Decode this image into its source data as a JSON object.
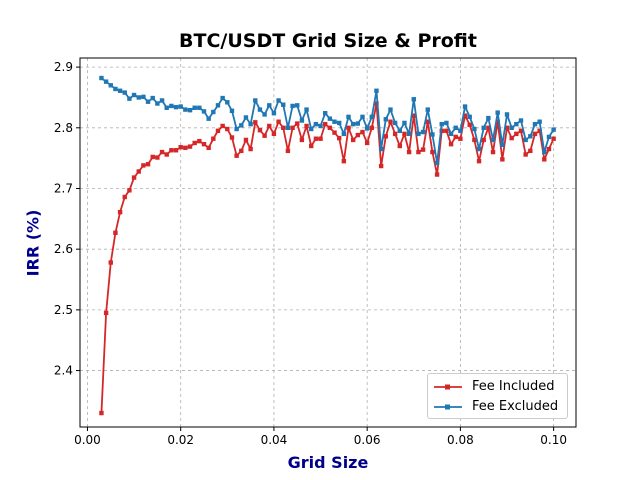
{
  "chart_data": {
    "type": "line",
    "title": "BTC/USDT Grid Size & Profit",
    "xlabel": "Grid Size",
    "ylabel": "IRR (%)",
    "xlim": [
      -0.0016,
      0.1048
    ],
    "ylim": [
      2.307,
      2.915
    ],
    "xticks": [
      0.0,
      0.02,
      0.04,
      0.06,
      0.08,
      0.1
    ],
    "xtick_labels": [
      "0.00",
      "0.02",
      "0.04",
      "0.06",
      "0.08",
      "0.10"
    ],
    "yticks": [
      2.4,
      2.5,
      2.6,
      2.7,
      2.8,
      2.9
    ],
    "ytick_labels": [
      "2.4",
      "2.5",
      "2.6",
      "2.7",
      "2.8",
      "2.9"
    ],
    "grid": true,
    "legend_position": "lower-right",
    "x": [
      0.003,
      0.004,
      0.005,
      0.006,
      0.007,
      0.008,
      0.009,
      0.01,
      0.011,
      0.012,
      0.013,
      0.014,
      0.015,
      0.016,
      0.017,
      0.018,
      0.019,
      0.02,
      0.021,
      0.022,
      0.023,
      0.024,
      0.025,
      0.026,
      0.027,
      0.028,
      0.029,
      0.03,
      0.031,
      0.032,
      0.033,
      0.034,
      0.035,
      0.036,
      0.037,
      0.038,
      0.039,
      0.04,
      0.041,
      0.042,
      0.043,
      0.044,
      0.045,
      0.046,
      0.047,
      0.048,
      0.049,
      0.05,
      0.051,
      0.052,
      0.053,
      0.054,
      0.055,
      0.056,
      0.057,
      0.058,
      0.059,
      0.06,
      0.061,
      0.062,
      0.063,
      0.064,
      0.065,
      0.066,
      0.067,
      0.068,
      0.069,
      0.07,
      0.071,
      0.072,
      0.073,
      0.074,
      0.075,
      0.076,
      0.077,
      0.078,
      0.079,
      0.08,
      0.081,
      0.082,
      0.083,
      0.084,
      0.085,
      0.086,
      0.087,
      0.088,
      0.089,
      0.09,
      0.091,
      0.092,
      0.093,
      0.094,
      0.095,
      0.096,
      0.097,
      0.098,
      0.099,
      0.1
    ],
    "series": [
      {
        "name": "Fee Included",
        "color": "#d62728",
        "marker": "square",
        "values": [
          2.33,
          2.495,
          2.578,
          2.627,
          2.661,
          2.686,
          2.697,
          2.718,
          2.728,
          2.738,
          2.74,
          2.752,
          2.751,
          2.76,
          2.756,
          2.763,
          2.763,
          2.768,
          2.767,
          2.769,
          2.775,
          2.778,
          2.773,
          2.767,
          2.782,
          2.795,
          2.803,
          2.798,
          2.784,
          2.754,
          2.762,
          2.78,
          2.765,
          2.809,
          2.796,
          2.787,
          2.803,
          2.79,
          2.81,
          2.8,
          2.762,
          2.8,
          2.807,
          2.78,
          2.803,
          2.77,
          2.782,
          2.782,
          2.806,
          2.8,
          2.792,
          2.783,
          2.745,
          2.8,
          2.78,
          2.788,
          2.793,
          2.775,
          2.8,
          2.84,
          2.737,
          2.786,
          2.81,
          2.79,
          2.77,
          2.79,
          2.76,
          2.82,
          2.76,
          2.764,
          2.81,
          2.76,
          2.723,
          2.795,
          2.795,
          2.773,
          2.785,
          2.782,
          2.82,
          2.805,
          2.78,
          2.745,
          2.78,
          2.8,
          2.76,
          2.81,
          2.748,
          2.8,
          2.783,
          2.79,
          2.795,
          2.756,
          2.762,
          2.79,
          2.795,
          2.748,
          2.765,
          2.782
        ]
      },
      {
        "name": "Fee Excluded",
        "color": "#1f77b4",
        "marker": "square",
        "values": [
          2.882,
          2.876,
          2.87,
          2.864,
          2.861,
          2.858,
          2.848,
          2.854,
          2.85,
          2.851,
          2.843,
          2.849,
          2.84,
          2.845,
          2.833,
          2.836,
          2.834,
          2.835,
          2.83,
          2.829,
          2.833,
          2.833,
          2.827,
          2.815,
          2.826,
          2.837,
          2.849,
          2.842,
          2.828,
          2.798,
          2.804,
          2.817,
          2.806,
          2.845,
          2.83,
          2.822,
          2.837,
          2.824,
          2.845,
          2.838,
          2.8,
          2.836,
          2.837,
          2.812,
          2.83,
          2.798,
          2.806,
          2.803,
          2.824,
          2.815,
          2.81,
          2.808,
          2.79,
          2.818,
          2.806,
          2.807,
          2.818,
          2.799,
          2.818,
          2.861,
          2.765,
          2.814,
          2.83,
          2.808,
          2.795,
          2.808,
          2.79,
          2.847,
          2.79,
          2.793,
          2.83,
          2.789,
          2.742,
          2.806,
          2.808,
          2.79,
          2.8,
          2.795,
          2.835,
          2.818,
          2.798,
          2.765,
          2.8,
          2.816,
          2.78,
          2.825,
          2.772,
          2.822,
          2.8,
          2.806,
          2.812,
          2.78,
          2.786,
          2.806,
          2.81,
          2.76,
          2.785,
          2.797
        ]
      }
    ]
  }
}
